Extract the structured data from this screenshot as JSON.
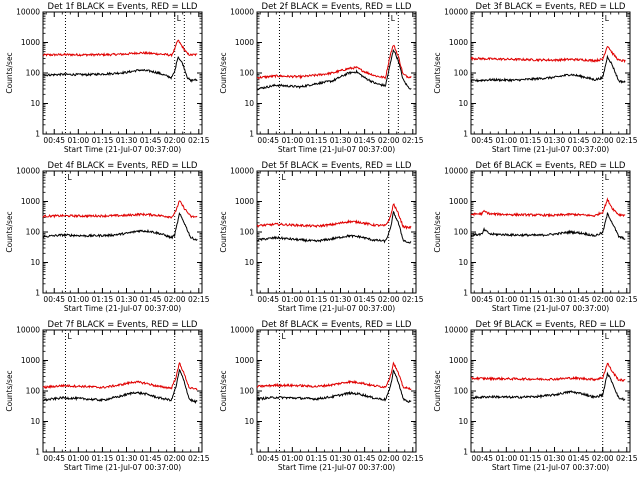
{
  "colors": {
    "events": "#000000",
    "lld": "#e00000",
    "axes": "#000000",
    "background": "#ffffff"
  },
  "chart_data": [
    {
      "type": "line",
      "title": "Det 1f BLACK = Events, RED = LLD",
      "xlabel": "Start Time (21-Jul-07 00:37:00)",
      "ylabel": "Counts/sec",
      "yscale": "log",
      "ylim": [
        1,
        10000
      ],
      "xlim": [
        "00:38",
        "02:17"
      ],
      "x_ticks": [
        "00:45",
        "01:00",
        "01:15",
        "01:30",
        "01:45",
        "02:00",
        "02:15"
      ],
      "y_ticks": [
        "1",
        "10",
        "100",
        "1000",
        "10000"
      ],
      "vertical_markers": [
        "00:52",
        "02:00",
        "02:06"
      ],
      "marker_label": "L",
      "grid": false,
      "series": [
        {
          "name": "Events",
          "color": "black",
          "x": [
            "00:38",
            "00:50",
            "01:05",
            "01:20",
            "01:30",
            "01:38",
            "01:45",
            "01:50",
            "01:55",
            "01:58",
            "02:00",
            "02:02",
            "02:05",
            "02:08",
            "02:10",
            "02:12",
            "02:14"
          ],
          "values": [
            85,
            90,
            88,
            95,
            105,
            125,
            115,
            100,
            80,
            70,
            110,
            350,
            200,
            70,
            55,
            60,
            58
          ]
        },
        {
          "name": "LLD",
          "color": "red",
          "x": [
            "00:38",
            "00:50",
            "01:05",
            "01:20",
            "01:30",
            "01:38",
            "01:45",
            "01:50",
            "01:55",
            "01:58",
            "02:00",
            "02:02",
            "02:05",
            "02:08",
            "02:10",
            "02:12",
            "02:14"
          ],
          "values": [
            390,
            400,
            395,
            400,
            420,
            460,
            440,
            420,
            400,
            380,
            600,
            1200,
            700,
            420,
            390,
            400,
            400
          ]
        }
      ]
    },
    {
      "type": "line",
      "title": "Det 2f BLACK = Events, RED = LLD",
      "xlabel": "Start Time (21-Jul-07 00:37:00)",
      "ylabel": "Counts/sec",
      "yscale": "log",
      "ylim": [
        1,
        10000
      ],
      "xlim": [
        "00:38",
        "02:17"
      ],
      "x_ticks": [
        "00:45",
        "01:00",
        "01:15",
        "01:30",
        "01:45",
        "02:00",
        "02:15"
      ],
      "y_ticks": [
        "1",
        "10",
        "100",
        "1000",
        "10000"
      ],
      "vertical_markers": [
        "00:52",
        "02:00",
        "02:06"
      ],
      "marker_label": "L",
      "grid": false,
      "series": [
        {
          "name": "Events",
          "color": "black",
          "x": [
            "00:38",
            "00:50",
            "01:05",
            "01:15",
            "01:25",
            "01:35",
            "01:40",
            "01:45",
            "01:52",
            "01:58",
            "02:01",
            "02:03",
            "02:06",
            "02:09",
            "02:12",
            "02:14"
          ],
          "values": [
            30,
            40,
            35,
            45,
            55,
            100,
            110,
            70,
            45,
            38,
            200,
            600,
            250,
            60,
            35,
            30
          ]
        },
        {
          "name": "LLD",
          "color": "red",
          "x": [
            "00:38",
            "00:50",
            "01:05",
            "01:15",
            "01:25",
            "01:35",
            "01:40",
            "01:45",
            "01:52",
            "01:58",
            "02:01",
            "02:03",
            "02:06",
            "02:09",
            "02:12",
            "02:14"
          ],
          "values": [
            70,
            80,
            75,
            85,
            100,
            140,
            150,
            110,
            80,
            70,
            400,
            850,
            350,
            90,
            75,
            75
          ]
        }
      ]
    },
    {
      "type": "line",
      "title": "Det 3f BLACK = Events, RED = LLD",
      "xlabel": "Start Time (21-Jul-07 00:37:00)",
      "ylabel": "Counts/sec",
      "yscale": "log",
      "ylim": [
        1,
        10000
      ],
      "xlim": [
        "00:38",
        "02:17"
      ],
      "x_ticks": [
        "00:45",
        "01:00",
        "01:15",
        "01:30",
        "01:45",
        "02:00",
        "02:15"
      ],
      "y_ticks": [
        "1",
        "10",
        "100",
        "1000",
        "10000"
      ],
      "vertical_markers": [
        "02:00"
      ],
      "marker_label": "L",
      "grid": false,
      "series": [
        {
          "name": "Events",
          "color": "black",
          "x": [
            "00:38",
            "00:50",
            "01:05",
            "01:20",
            "01:30",
            "01:40",
            "01:48",
            "01:55",
            "02:00",
            "02:03",
            "02:06",
            "02:10",
            "02:14"
          ],
          "values": [
            55,
            60,
            58,
            65,
            72,
            90,
            75,
            60,
            70,
            350,
            180,
            55,
            50
          ]
        },
        {
          "name": "LLD",
          "color": "red",
          "x": [
            "00:38",
            "00:50",
            "01:05",
            "01:20",
            "01:30",
            "01:40",
            "01:48",
            "01:55",
            "02:00",
            "02:03",
            "02:06",
            "02:10",
            "02:14"
          ],
          "values": [
            300,
            290,
            280,
            270,
            265,
            280,
            270,
            255,
            280,
            800,
            450,
            260,
            250
          ]
        }
      ]
    },
    {
      "type": "line",
      "title": "Det 4f BLACK = Events, RED = LLD",
      "xlabel": "Start Time (21-Jul-07 00:37:00)",
      "ylabel": "Counts/sec",
      "yscale": "log",
      "ylim": [
        1,
        10000
      ],
      "xlim": [
        "00:38",
        "02:17"
      ],
      "x_ticks": [
        "00:45",
        "01:00",
        "01:15",
        "01:30",
        "01:45",
        "02:00",
        "02:15"
      ],
      "y_ticks": [
        "1",
        "10",
        "100",
        "1000",
        "10000"
      ],
      "vertical_markers": [
        "00:52",
        "02:00"
      ],
      "marker_label": "L",
      "grid": false,
      "series": [
        {
          "name": "Events",
          "color": "black",
          "x": [
            "00:38",
            "00:50",
            "01:05",
            "01:20",
            "01:30",
            "01:38",
            "01:45",
            "01:52",
            "01:58",
            "02:00",
            "02:03",
            "02:06",
            "02:10",
            "02:14"
          ],
          "values": [
            70,
            80,
            75,
            78,
            90,
            110,
            105,
            85,
            65,
            80,
            400,
            200,
            65,
            55
          ]
        },
        {
          "name": "LLD",
          "color": "red",
          "x": [
            "00:38",
            "00:50",
            "01:05",
            "01:20",
            "01:30",
            "01:38",
            "01:45",
            "01:52",
            "01:58",
            "02:00",
            "02:03",
            "02:06",
            "02:10",
            "02:14"
          ],
          "values": [
            330,
            340,
            335,
            340,
            350,
            380,
            370,
            340,
            310,
            400,
            1050,
            600,
            320,
            310
          ]
        }
      ]
    },
    {
      "type": "line",
      "title": "Det 5f BLACK = Events, RED = LLD",
      "xlabel": "Start Time (21-Jul-07 00:37:00)",
      "ylabel": "Counts/sec",
      "yscale": "log",
      "ylim": [
        1,
        10000
      ],
      "xlim": [
        "00:38",
        "02:17"
      ],
      "x_ticks": [
        "00:45",
        "01:00",
        "01:15",
        "01:30",
        "01:45",
        "02:00",
        "02:15"
      ],
      "y_ticks": [
        "1",
        "10",
        "100",
        "1000",
        "10000"
      ],
      "vertical_markers": [
        "00:52",
        "02:00"
      ],
      "marker_label": "L",
      "grid": false,
      "series": [
        {
          "name": "Events",
          "color": "black",
          "x": [
            "00:38",
            "00:50",
            "01:05",
            "01:15",
            "01:25",
            "01:35",
            "01:42",
            "01:50",
            "01:58",
            "02:01",
            "02:03",
            "02:06",
            "02:09",
            "02:12",
            "02:14"
          ],
          "values": [
            55,
            65,
            55,
            50,
            60,
            75,
            70,
            55,
            50,
            120,
            450,
            200,
            55,
            45,
            45
          ]
        },
        {
          "name": "LLD",
          "color": "red",
          "x": [
            "00:38",
            "00:50",
            "01:05",
            "01:15",
            "01:25",
            "01:35",
            "01:42",
            "01:50",
            "01:58",
            "02:01",
            "02:03",
            "02:06",
            "02:09",
            "02:12",
            "02:14"
          ],
          "values": [
            160,
            180,
            165,
            155,
            175,
            220,
            210,
            170,
            160,
            300,
            850,
            400,
            150,
            140,
            140
          ]
        }
      ]
    },
    {
      "type": "line",
      "title": "Det 6f BLACK = Events, RED = LLD",
      "xlabel": "Start Time (21-Jul-07 00:37:00)",
      "ylabel": "Counts/sec",
      "yscale": "log",
      "ylim": [
        1,
        10000
      ],
      "xlim": [
        "00:38",
        "02:17"
      ],
      "x_ticks": [
        "00:45",
        "01:00",
        "01:15",
        "01:30",
        "01:45",
        "02:00",
        "02:15"
      ],
      "y_ticks": [
        "1",
        "10",
        "100",
        "1000",
        "10000"
      ],
      "vertical_markers": [
        "02:00"
      ],
      "marker_label": "L",
      "grid": false,
      "series": [
        {
          "name": "Events",
          "color": "black",
          "x": [
            "00:38",
            "00:45",
            "00:46",
            "00:50",
            "01:05",
            "01:20",
            "01:30",
            "01:40",
            "01:48",
            "01:55",
            "02:00",
            "02:03",
            "02:06",
            "02:10",
            "02:14"
          ],
          "values": [
            80,
            85,
            120,
            85,
            80,
            78,
            85,
            100,
            90,
            75,
            95,
            400,
            200,
            70,
            60
          ]
        },
        {
          "name": "LLD",
          "color": "red",
          "x": [
            "00:38",
            "00:45",
            "00:46",
            "00:50",
            "01:05",
            "01:20",
            "01:30",
            "01:40",
            "01:48",
            "01:55",
            "02:00",
            "02:03",
            "02:06",
            "02:10",
            "02:14"
          ],
          "values": [
            380,
            400,
            480,
            390,
            370,
            360,
            350,
            380,
            360,
            340,
            450,
            1150,
            600,
            370,
            360
          ]
        }
      ]
    },
    {
      "type": "line",
      "title": "Det 7f BLACK = Events, RED = LLD",
      "xlabel": "Start Time (21-Jul-07 00:37:00)",
      "ylabel": "Counts/sec",
      "yscale": "log",
      "ylim": [
        1,
        10000
      ],
      "xlim": [
        "00:38",
        "02:17"
      ],
      "x_ticks": [
        "00:45",
        "01:00",
        "01:15",
        "01:30",
        "01:45",
        "02:00",
        "02:15"
      ],
      "y_ticks": [
        "1",
        "10",
        "100",
        "1000",
        "10000"
      ],
      "vertical_markers": [
        "00:52",
        "02:00"
      ],
      "marker_label": "L",
      "grid": false,
      "series": [
        {
          "name": "Events",
          "color": "black",
          "x": [
            "00:38",
            "00:50",
            "01:05",
            "01:15",
            "01:25",
            "01:35",
            "01:42",
            "01:50",
            "01:58",
            "02:01",
            "02:03",
            "02:06",
            "02:09",
            "02:12",
            "02:14"
          ],
          "values": [
            50,
            60,
            55,
            50,
            65,
            90,
            80,
            60,
            50,
            150,
            500,
            200,
            55,
            45,
            45
          ]
        },
        {
          "name": "LLD",
          "color": "red",
          "x": [
            "00:38",
            "00:50",
            "01:05",
            "01:15",
            "01:25",
            "01:35",
            "01:42",
            "01:50",
            "01:58",
            "02:01",
            "02:03",
            "02:06",
            "02:09",
            "02:12",
            "02:14"
          ],
          "values": [
            130,
            150,
            140,
            130,
            155,
            200,
            180,
            140,
            125,
            300,
            850,
            350,
            130,
            115,
            115
          ]
        }
      ]
    },
    {
      "type": "line",
      "title": "Det 8f BLACK = Events, RED = LLD",
      "xlabel": "Start Time (21-Jul-07 00:37:00)",
      "ylabel": "Counts/sec",
      "yscale": "log",
      "ylim": [
        1,
        10000
      ],
      "xlim": [
        "00:38",
        "02:17"
      ],
      "x_ticks": [
        "00:45",
        "01:00",
        "01:15",
        "01:30",
        "01:45",
        "02:00",
        "02:15"
      ],
      "y_ticks": [
        "1",
        "10",
        "100",
        "1000",
        "10000"
      ],
      "vertical_markers": [
        "00:52",
        "02:00"
      ],
      "marker_label": "L",
      "grid": false,
      "series": [
        {
          "name": "Events",
          "color": "black",
          "x": [
            "00:38",
            "00:50",
            "01:05",
            "01:15",
            "01:25",
            "01:35",
            "01:42",
            "01:50",
            "01:58",
            "02:01",
            "02:03",
            "02:06",
            "02:09",
            "02:12",
            "02:14"
          ],
          "values": [
            55,
            62,
            58,
            55,
            65,
            85,
            80,
            60,
            52,
            130,
            480,
            200,
            55,
            45,
            45
          ]
        },
        {
          "name": "LLD",
          "color": "red",
          "x": [
            "00:38",
            "00:50",
            "01:05",
            "01:15",
            "01:25",
            "01:35",
            "01:42",
            "01:50",
            "01:58",
            "02:01",
            "02:03",
            "02:06",
            "02:09",
            "02:12",
            "02:14"
          ],
          "values": [
            140,
            155,
            150,
            140,
            160,
            200,
            190,
            150,
            135,
            300,
            850,
            380,
            135,
            120,
            120
          ]
        }
      ]
    },
    {
      "type": "line",
      "title": "Det 9f BLACK = Events, RED = LLD",
      "xlabel": "Start Time (21-Jul-07 00:37:00)",
      "ylabel": "Counts/sec",
      "yscale": "log",
      "ylim": [
        1,
        10000
      ],
      "xlim": [
        "00:38",
        "02:17"
      ],
      "x_ticks": [
        "00:45",
        "01:00",
        "01:15",
        "01:30",
        "01:45",
        "02:00",
        "02:15"
      ],
      "y_ticks": [
        "1",
        "10",
        "100",
        "1000",
        "10000"
      ],
      "vertical_markers": [
        "02:00"
      ],
      "marker_label": "L",
      "grid": false,
      "series": [
        {
          "name": "Events",
          "color": "black",
          "x": [
            "00:38",
            "00:50",
            "01:05",
            "01:20",
            "01:30",
            "01:40",
            "01:48",
            "01:55",
            "02:00",
            "02:03",
            "02:06",
            "02:10",
            "02:14"
          ],
          "values": [
            60,
            65,
            62,
            66,
            75,
            95,
            80,
            62,
            75,
            380,
            190,
            58,
            52
          ]
        },
        {
          "name": "LLD",
          "color": "red",
          "x": [
            "00:38",
            "00:50",
            "01:05",
            "01:20",
            "01:30",
            "01:40",
            "01:48",
            "01:55",
            "02:00",
            "02:03",
            "02:06",
            "02:10",
            "02:14"
          ],
          "values": [
            260,
            255,
            250,
            245,
            245,
            265,
            255,
            240,
            270,
            820,
            430,
            230,
            225
          ]
        }
      ]
    }
  ]
}
